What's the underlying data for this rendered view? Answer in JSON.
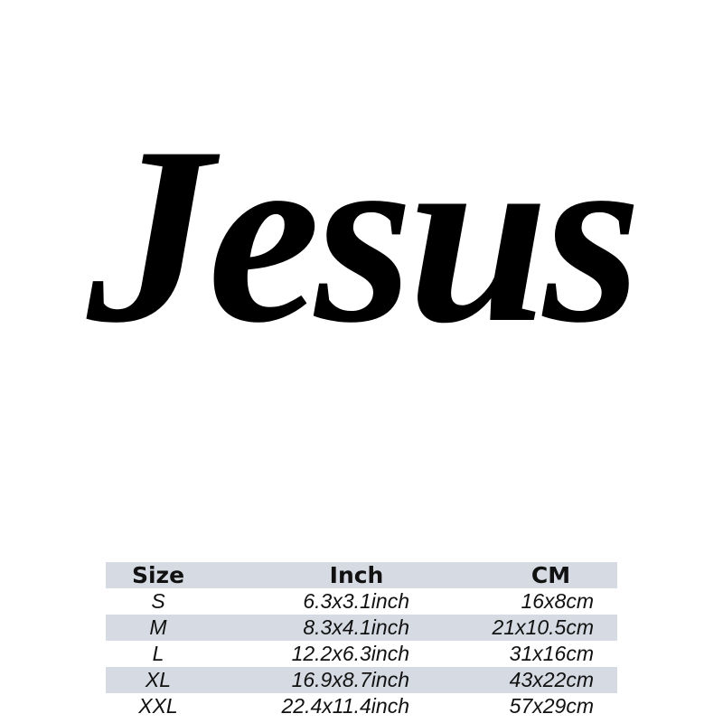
{
  "title": "Jesus",
  "table": {
    "headers": [
      "Size",
      "Inch",
      "CM"
    ],
    "rows": [
      [
        "S",
        "6.3x3.1inch",
        "16x8cm"
      ],
      [
        "M",
        "8.3x4.1inch",
        "21x10.5cm"
      ],
      [
        "L",
        "12.2x6.3inch",
        "31x16cm"
      ],
      [
        "XL",
        "16.9x8.7inch",
        "43x22cm"
      ],
      [
        "XXL",
        "22.4x11.4inch",
        "57x29cm"
      ]
    ]
  },
  "colors": {
    "row_shade": "#d6dbe3",
    "text": "#000000"
  }
}
